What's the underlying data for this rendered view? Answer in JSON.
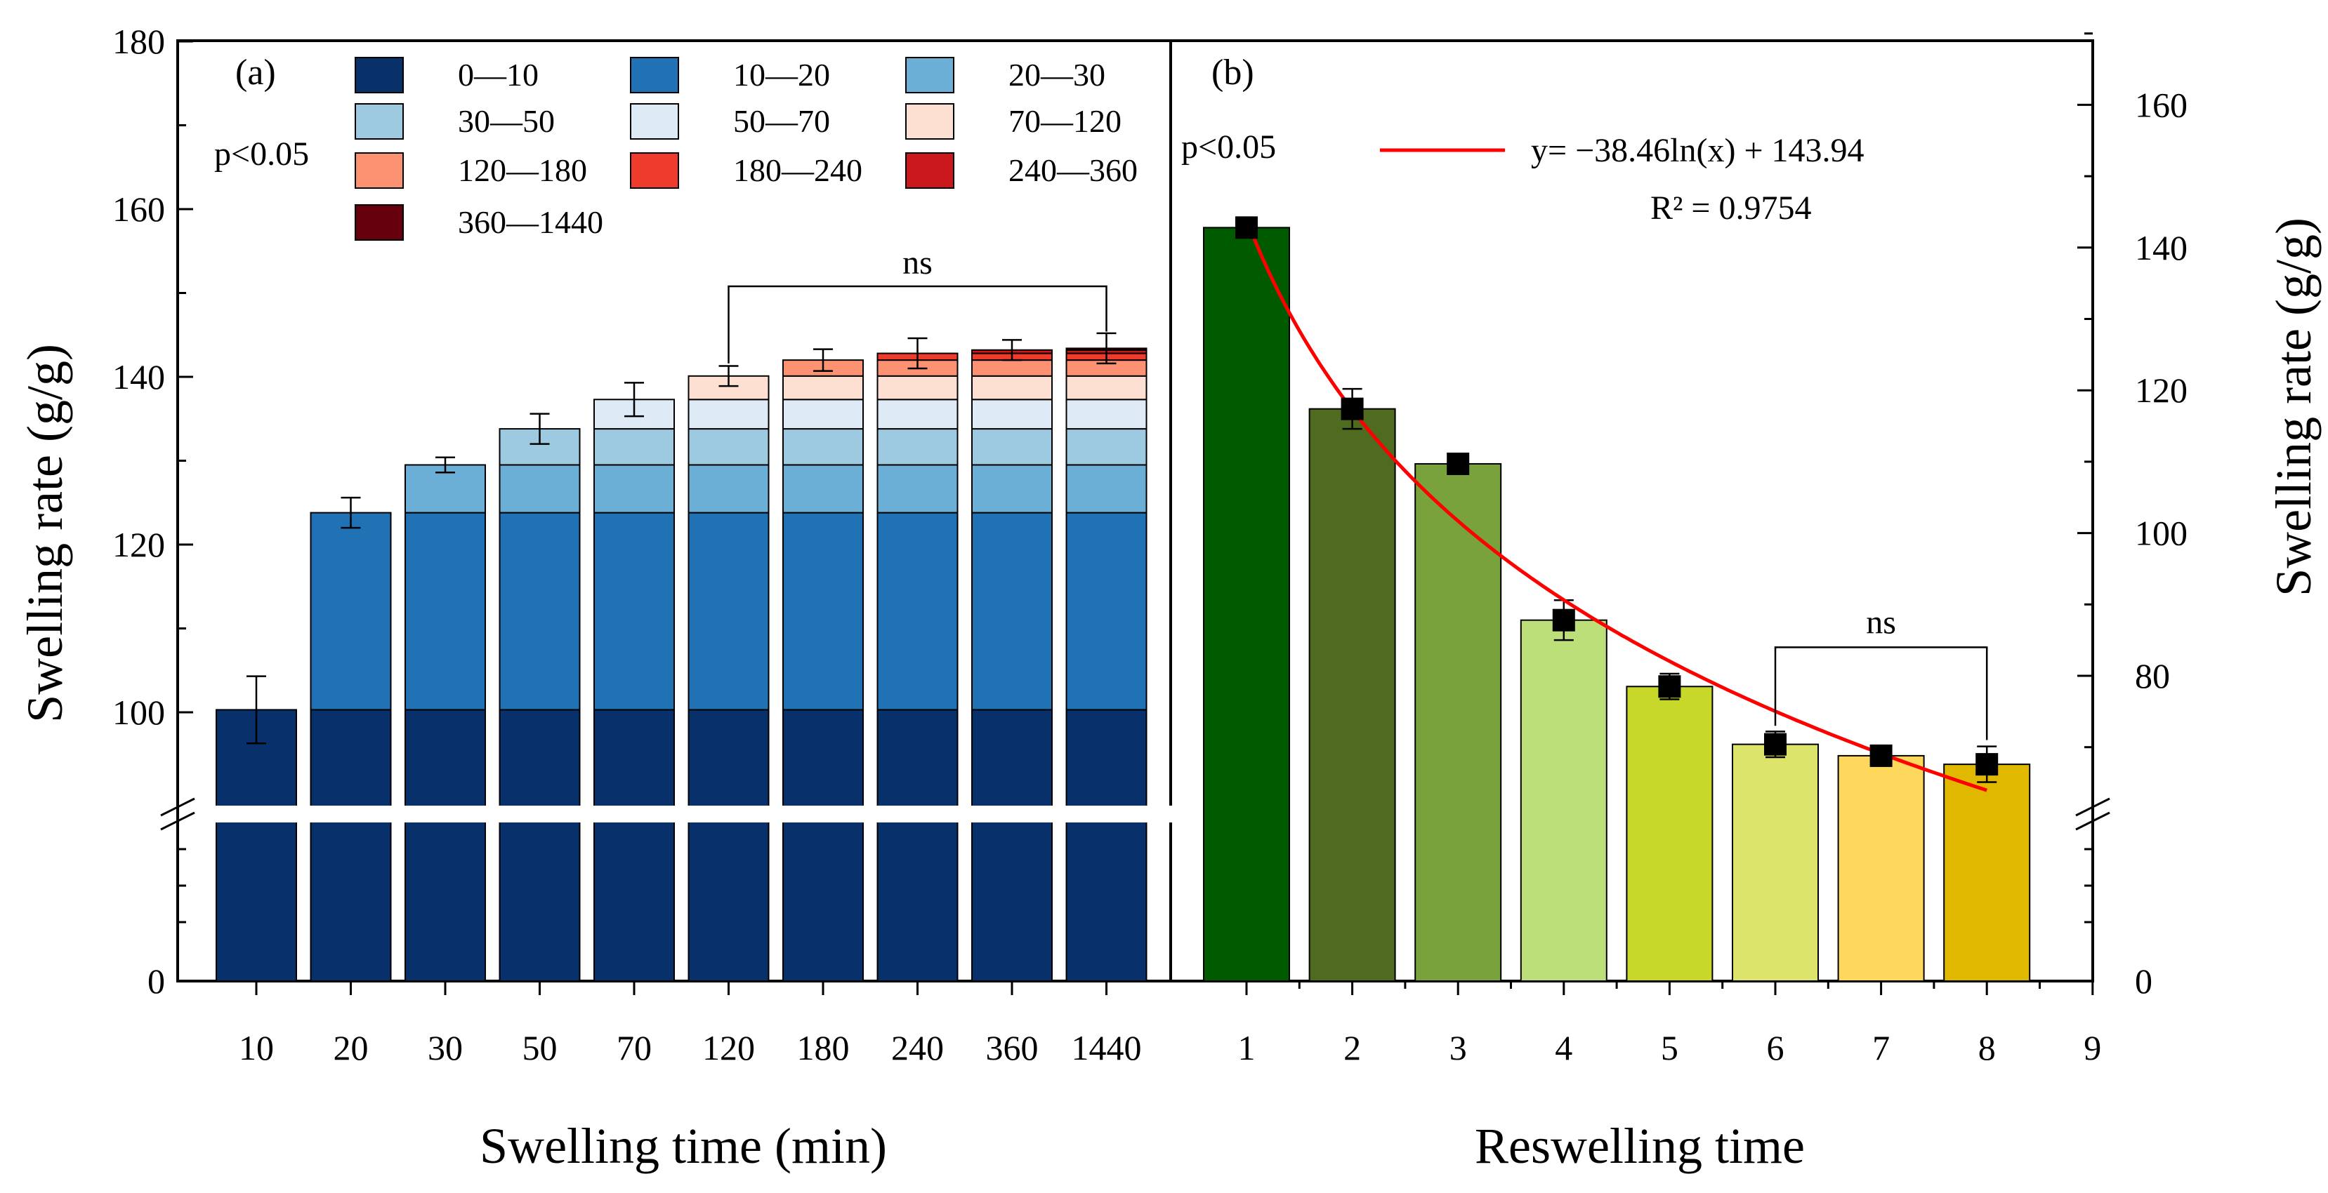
{
  "chart_data": [
    {
      "panel": "(a)",
      "type": "bar",
      "stacked": true,
      "broken_y_axis": true,
      "xlabel": "Swelling time (min)",
      "ylabel": "Swelling rate (g/g)",
      "categories": [
        "10",
        "20",
        "30",
        "50",
        "70",
        "120",
        "180",
        "240",
        "360",
        "1440"
      ],
      "y_ticks": [
        "0",
        "100",
        "120",
        "140",
        "160",
        "180"
      ],
      "ylim_upper_segment": [
        89,
        180
      ],
      "significance_note": "p<0.05",
      "significance_bracket": {
        "from": "120",
        "to": "1440",
        "label": "ns"
      },
      "totals": [
        100.3,
        123.8,
        129.5,
        133.8,
        137.3,
        140.1,
        142.0,
        142.8,
        143.2,
        143.4
      ],
      "errors": [
        4.0,
        1.8,
        0.9,
        1.8,
        2.0,
        1.2,
        1.3,
        1.8,
        1.2,
        1.8
      ],
      "legend_position": "top",
      "series": [
        {
          "name": "0—10",
          "color": "#08306b",
          "values": [
            100.3,
            100.3,
            100.3,
            100.3,
            100.3,
            100.3,
            100.3,
            100.3,
            100.3,
            100.3
          ]
        },
        {
          "name": "10—20",
          "color": "#2171b5",
          "values": [
            0,
            23.5,
            23.5,
            23.5,
            23.5,
            23.5,
            23.5,
            23.5,
            23.5,
            23.5
          ]
        },
        {
          "name": "20—30",
          "color": "#6baed6",
          "values": [
            0,
            0,
            5.7,
            5.7,
            5.7,
            5.7,
            5.7,
            5.7,
            5.7,
            5.7
          ]
        },
        {
          "name": "30—50",
          "color": "#9ecae1",
          "values": [
            0,
            0,
            0,
            4.3,
            4.3,
            4.3,
            4.3,
            4.3,
            4.3,
            4.3
          ]
        },
        {
          "name": "50—70",
          "color": "#deebf7",
          "values": [
            0,
            0,
            0,
            0,
            3.5,
            3.5,
            3.5,
            3.5,
            3.5,
            3.5
          ]
        },
        {
          "name": "70—120",
          "color": "#fee0d2",
          "values": [
            0,
            0,
            0,
            0,
            0,
            2.8,
            2.8,
            2.8,
            2.8,
            2.8
          ]
        },
        {
          "name": "120—180",
          "color": "#fc9272",
          "values": [
            0,
            0,
            0,
            0,
            0,
            0,
            1.9,
            1.9,
            1.9,
            1.9
          ]
        },
        {
          "name": "180—240",
          "color": "#ef3b2c",
          "values": [
            0,
            0,
            0,
            0,
            0,
            0,
            0,
            0.8,
            0.8,
            0.8
          ]
        },
        {
          "name": "240—360",
          "color": "#cb181d",
          "values": [
            0,
            0,
            0,
            0,
            0,
            0,
            0,
            0,
            0.4,
            0.4
          ]
        },
        {
          "name": "360—1440",
          "color": "#67000d",
          "values": [
            0,
            0,
            0,
            0,
            0,
            0,
            0,
            0,
            0,
            0.2
          ]
        }
      ]
    },
    {
      "panel": "(b)",
      "type": "bar",
      "broken_y_axis": true,
      "xlabel": "Reswelling time",
      "ylabel": "Swelling rate (g/g)",
      "categories": [
        "1",
        "2",
        "3",
        "4",
        "5",
        "6",
        "7",
        "8"
      ],
      "x_ticks": [
        "1",
        "2",
        "3",
        "4",
        "5",
        "6",
        "7",
        "8",
        "9"
      ],
      "y_ticks": [
        "0",
        "80",
        "100",
        "120",
        "140",
        "160"
      ],
      "ylim_upper_segment": [
        64,
        170
      ],
      "values": [
        142.8,
        117.4,
        109.7,
        87.8,
        78.5,
        70.4,
        68.8,
        67.6
      ],
      "errors": [
        0.8,
        2.8,
        0.8,
        2.8,
        1.8,
        1.8,
        1.4,
        2.5
      ],
      "colors": [
        "#005a00",
        "#4e6b1f",
        "#7aa23c",
        "#bcdf7a",
        "#c7d82a",
        "#dce46c",
        "#fdd85d",
        "#e0b800"
      ],
      "significance_note": "p<0.05",
      "significance_bracket": {
        "from": "6",
        "to": "8",
        "label": "ns"
      },
      "fit": {
        "equation": "y= −38.46ln(x) + 143.94",
        "r2": "R² = 0.9754",
        "a": -38.46,
        "b": 143.94,
        "x_range": [
          1,
          8
        ],
        "color": "#ff0000"
      }
    }
  ]
}
